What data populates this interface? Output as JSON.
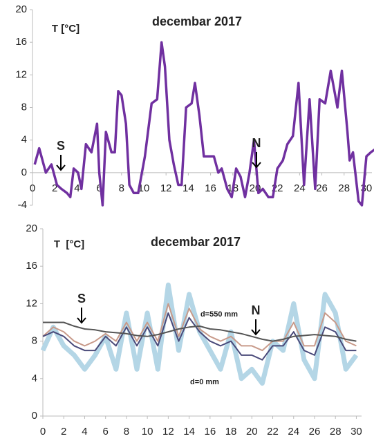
{
  "chart_data": [
    {
      "type": "line",
      "title": "decembar 2017",
      "y_label": "T [°C]",
      "annotations": [
        "S",
        "N"
      ],
      "x": [
        0.2,
        0.6,
        1.2,
        1.7,
        2.2,
        2.6,
        3.1,
        3.4,
        3.7,
        4.1,
        4.4,
        4.8,
        5.3,
        5.8,
        6.0,
        6.3,
        6.6,
        7.1,
        7.4,
        7.7,
        8.0,
        8.4,
        8.7,
        9.1,
        9.5,
        10.1,
        10.7,
        11.2,
        11.6,
        11.9,
        12.3,
        12.7,
        13.1,
        13.4,
        13.8,
        14.3,
        14.6,
        15.0,
        15.4,
        15.9,
        16.3,
        16.7,
        17.0,
        17.5,
        17.9,
        18.3,
        18.7,
        19.1,
        19.5,
        19.9,
        20.3,
        20.7,
        21.2,
        21.6,
        22.0,
        22.5,
        22.9,
        23.4,
        23.9,
        24.4,
        24.9,
        25.4,
        25.8,
        26.3,
        26.8,
        27.4,
        27.8,
        28.3,
        28.5,
        28.8,
        29.3,
        29.6,
        30.0,
        30.4,
        30.9
      ],
      "series": [
        {
          "color": "#7030a0",
          "values": [
            1,
            3,
            0,
            1,
            -1.5,
            -2,
            -2.5,
            -3,
            0.5,
            0,
            -2,
            3.5,
            2.5,
            6,
            0,
            -4,
            5,
            2.5,
            2.5,
            10,
            9.5,
            6,
            -1.5,
            -2.5,
            -2.5,
            2,
            8.5,
            9,
            16,
            13,
            4,
            1,
            -1.5,
            -1.5,
            8,
            8.5,
            11,
            7,
            2,
            2,
            2,
            0,
            0.5,
            -2,
            -3,
            0.5,
            -0.5,
            -3,
            0,
            4,
            -2.5,
            -2,
            -3,
            -3,
            0.5,
            1.5,
            3.5,
            4.5,
            11,
            -1.5,
            9,
            -2,
            9,
            8.5,
            12.5,
            8,
            12.5,
            5,
            1.5,
            2.5,
            -3.5,
            -4,
            2,
            2.5,
            3
          ]
        }
      ],
      "xlim": [
        0,
        30.5
      ],
      "xticks": [
        0,
        2,
        4,
        6,
        8,
        10,
        12,
        14,
        16,
        18,
        20,
        22,
        24,
        26,
        28,
        30
      ],
      "ylim": [
        -4,
        20
      ],
      "yticks": [
        -4,
        0,
        4,
        8,
        12,
        16,
        20
      ]
    },
    {
      "type": "line",
      "title": "decembar 2017",
      "y_label": "T  [°C]",
      "annotations": [
        "S",
        "N",
        "d=550 mm",
        "d=0 mm"
      ],
      "x": [
        0,
        1,
        2,
        3,
        4,
        5,
        6,
        7,
        8,
        9,
        10,
        11,
        12,
        13,
        14,
        15,
        16,
        17,
        18,
        19,
        20,
        21,
        22,
        23,
        24,
        25,
        26,
        27,
        28,
        29,
        30
      ],
      "series": [
        {
          "color": "#b4d6e6",
          "values": [
            7,
            9.5,
            7.5,
            6.5,
            5,
            6.5,
            8.5,
            5,
            11,
            5,
            11,
            5,
            14,
            7,
            13,
            9,
            7,
            5,
            9,
            4,
            5,
            3.5,
            8,
            7,
            12,
            6,
            4,
            13,
            11,
            5,
            6.5
          ]
        },
        {
          "color": "#c89a8a",
          "values": [
            8.5,
            9.5,
            9,
            8,
            7.5,
            8,
            8.8,
            8,
            10,
            8,
            10,
            8,
            12,
            8.5,
            11.5,
            9.3,
            8.5,
            8,
            8.5,
            7.5,
            7.5,
            7,
            8,
            8,
            10,
            7.5,
            7.5,
            11,
            10,
            8,
            7.5
          ]
        },
        {
          "color": "#4a4a7a",
          "values": [
            8.5,
            9,
            8.5,
            7.5,
            7,
            7,
            8.5,
            7.5,
            9.5,
            7.5,
            9.5,
            7.5,
            11,
            8,
            10.5,
            9,
            8,
            7.5,
            8,
            6.5,
            6.5,
            6,
            7.5,
            7.5,
            9,
            7,
            6.5,
            9.5,
            9,
            7,
            7
          ]
        },
        {
          "color": "#555555",
          "values": [
            10,
            10,
            10,
            9.6,
            9.3,
            9.2,
            9,
            8.9,
            8.8,
            8.6,
            8.5,
            8.7,
            9,
            9.3,
            9.5,
            9.6,
            9.3,
            9.2,
            9,
            8.8,
            8.5,
            8.2,
            8,
            8.2,
            8.5,
            8.6,
            8.7,
            8.6,
            8.5,
            8.2,
            8
          ]
        }
      ],
      "xlim": [
        0,
        30.5
      ],
      "xticks": [
        0,
        2,
        4,
        6,
        8,
        10,
        12,
        14,
        16,
        18,
        20,
        22,
        24,
        26,
        28,
        30
      ],
      "ylim": [
        0,
        20
      ],
      "yticks": [
        0,
        4,
        8,
        12,
        16,
        20
      ]
    }
  ]
}
